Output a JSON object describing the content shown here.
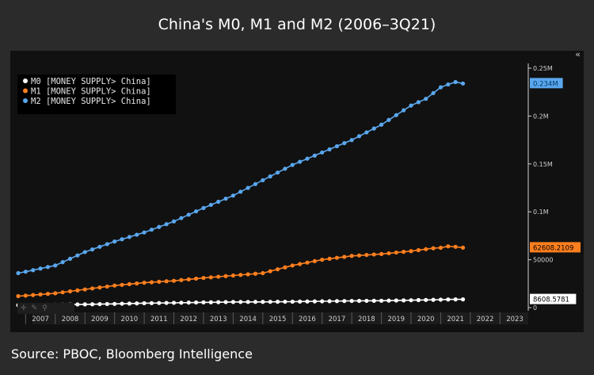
{
  "title": "China's M0, M1 and M2 (2006–3Q21)",
  "source": "Source: PBOC, Bloomberg Intelligence",
  "ui": {
    "collapse_icon": "double-chevron-icon",
    "tool_icons": [
      "crosshair-icon",
      "pencil-icon",
      "zoom-icon"
    ]
  },
  "chart_data": {
    "type": "line",
    "x_tick_labels": [
      "2007",
      "2008",
      "2009",
      "2010",
      "2011",
      "2012",
      "2013",
      "2014",
      "2015",
      "2016",
      "2017",
      "2018",
      "2019",
      "2020",
      "2021",
      "2022",
      "2023"
    ],
    "x_range": [
      2006.75,
      2023.9
    ],
    "y_range": [
      0,
      250000
    ],
    "y_tick_labels": [
      {
        "value": 0,
        "label": "0"
      },
      {
        "value": 50000,
        "label": "50000"
      },
      {
        "value": 100000,
        "label": "0.1M"
      },
      {
        "value": 150000,
        "label": "0.15M"
      },
      {
        "value": 200000,
        "label": "0.2M"
      },
      {
        "value": 250000,
        "label": "0.25M"
      }
    ],
    "legend_position": "top-left",
    "grid": false,
    "series": [
      {
        "name": "M0 [MONEY SUPPLY> China]",
        "color": "#ffffff",
        "last_value_label": "8608.5781",
        "points": [
          [
            2006.75,
            2.6
          ],
          [
            2007.0,
            2.7
          ],
          [
            2008.0,
            3.0
          ],
          [
            2009.0,
            3.4
          ],
          [
            2010.0,
            3.9
          ],
          [
            2011.0,
            4.6
          ],
          [
            2012.0,
            5.0
          ],
          [
            2013.0,
            5.5
          ],
          [
            2014.0,
            5.9
          ],
          [
            2015.0,
            6.0
          ],
          [
            2016.0,
            6.2
          ],
          [
            2017.0,
            6.6
          ],
          [
            2018.0,
            7.0
          ],
          [
            2019.0,
            7.2
          ],
          [
            2020.0,
            7.7
          ],
          [
            2021.0,
            8.3
          ],
          [
            2021.25,
            8.5
          ],
          [
            2021.5,
            8.6
          ],
          [
            2021.75,
            8.6
          ]
        ]
      },
      {
        "name": "M1 [MONEY SUPPLY> China]",
        "color": "#ff7f1e",
        "last_value_label": "62608.2109",
        "points": [
          [
            2006.75,
            12.0
          ],
          [
            2007.0,
            12.5
          ],
          [
            2008.0,
            15.0
          ],
          [
            2009.0,
            19.0
          ],
          [
            2010.0,
            23.0
          ],
          [
            2011.0,
            26.0
          ],
          [
            2012.0,
            28.0
          ],
          [
            2013.0,
            31.0
          ],
          [
            2014.0,
            33.5
          ],
          [
            2015.0,
            36.0
          ],
          [
            2016.0,
            44.0
          ],
          [
            2017.0,
            50.0
          ],
          [
            2018.0,
            54.0
          ],
          [
            2019.0,
            56.0
          ],
          [
            2020.0,
            59.0
          ],
          [
            2020.75,
            62.0
          ],
          [
            2021.0,
            62.5
          ],
          [
            2021.25,
            64.0
          ],
          [
            2021.5,
            63.5
          ],
          [
            2021.75,
            62.6
          ]
        ]
      },
      {
        "name": "M2 [MONEY SUPPLY> China]",
        "color": "#5aa7ee",
        "last_value_label": "0.234M",
        "points": [
          [
            2006.75,
            36.0
          ],
          [
            2007.0,
            37.5
          ],
          [
            2008.0,
            44.0
          ],
          [
            2009.0,
            58.0
          ],
          [
            2010.0,
            69.0
          ],
          [
            2011.0,
            78.5
          ],
          [
            2012.0,
            90.0
          ],
          [
            2013.0,
            104.0
          ],
          [
            2014.0,
            117.0
          ],
          [
            2015.0,
            133.0
          ],
          [
            2016.0,
            149.0
          ],
          [
            2017.0,
            162.0
          ],
          [
            2018.0,
            175.0
          ],
          [
            2019.0,
            191.0
          ],
          [
            2020.0,
            211.0
          ],
          [
            2020.5,
            218.0
          ],
          [
            2021.0,
            230.0
          ],
          [
            2021.25,
            233.0
          ],
          [
            2021.5,
            235.5
          ],
          [
            2021.75,
            234.0
          ]
        ]
      }
    ],
    "value_unit_in_points": "thousand"
  }
}
